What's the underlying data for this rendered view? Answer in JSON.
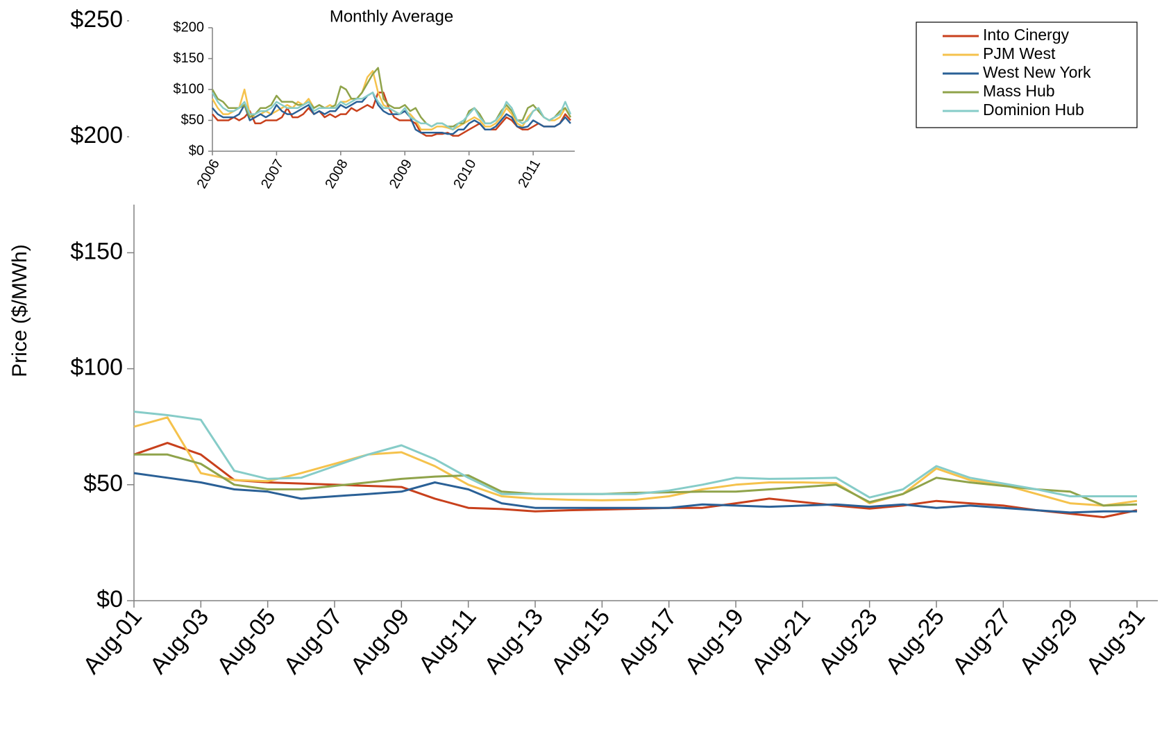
{
  "chart_data": [
    {
      "type": "line",
      "ylabel": "Price ($/MWh)",
      "legend": "upper right",
      "grid": false,
      "categories": [
        "Aug-01",
        null,
        "Aug-03",
        null,
        "Aug-05",
        null,
        "Aug-07",
        null,
        "Aug-09",
        null,
        "Aug-11",
        null,
        "Aug-13",
        null,
        "Aug-15",
        null,
        "Aug-17",
        null,
        "Aug-19",
        null,
        "Aug-21",
        null,
        "Aug-23",
        null,
        "Aug-25",
        null,
        "Aug-27",
        null,
        "Aug-29",
        null,
        "Aug-31"
      ],
      "ylim": [
        0,
        250
      ],
      "yticks": [
        {
          "value": 0,
          "label": "$0"
        },
        {
          "value": 50,
          "label": "$50"
        },
        {
          "value": 100,
          "label": "$100"
        },
        {
          "value": 150,
          "label": "$150"
        },
        {
          "value": 200,
          "label": "$200"
        },
        {
          "value": 250,
          "label": "$250"
        }
      ],
      "series": [
        {
          "name": "Into Cinergy",
          "color": "#c8401c",
          "values": [
            63,
            68,
            63,
            52,
            51,
            50.5,
            50,
            49.5,
            49,
            44,
            40,
            39.5,
            38.5,
            39,
            39.3,
            39.6,
            40,
            40,
            42,
            44,
            42.5,
            41,
            39.7,
            41,
            43,
            42,
            41,
            39,
            37.5,
            36,
            39
          ]
        },
        {
          "name": "PJM West",
          "color": "#f5c24c",
          "values": [
            75,
            79,
            55,
            52,
            51.5,
            55,
            59,
            63,
            64,
            58,
            50,
            45,
            44,
            43.5,
            43.3,
            43.5,
            45,
            48,
            50,
            51,
            51,
            50.7,
            42,
            46,
            57,
            52,
            50,
            46,
            42,
            41,
            43
          ]
        },
        {
          "name": "West New York",
          "color": "#2a6096",
          "values": [
            55,
            53,
            51,
            48,
            47,
            44,
            45,
            46,
            47,
            51,
            48,
            42,
            40,
            40,
            40,
            40,
            40,
            41.5,
            41,
            40.5,
            41,
            41.5,
            40.5,
            41.5,
            40,
            41,
            40,
            39,
            38,
            38.5,
            38.5
          ]
        },
        {
          "name": "Mass Hub",
          "color": "#8fa34a",
          "values": [
            63,
            63,
            59,
            50,
            48,
            48,
            49.5,
            51,
            52.5,
            53.5,
            54,
            47,
            46,
            46,
            46,
            46.5,
            46.7,
            47,
            47,
            48,
            49,
            50,
            42.5,
            46,
            53,
            51,
            49.5,
            48,
            47,
            41,
            41.5
          ]
        },
        {
          "name": "Dominion Hub",
          "color": "#86ccc8",
          "values": [
            81.5,
            80,
            78,
            56,
            52.5,
            53,
            58,
            63,
            67,
            61,
            53,
            46,
            46,
            46,
            46,
            46,
            47.5,
            50,
            53,
            52.5,
            52.7,
            53,
            44.5,
            48,
            58,
            53,
            50.5,
            48,
            45,
            45,
            45
          ]
        }
      ]
    },
    {
      "type": "line",
      "title": "Monthly Average",
      "categories": [
        "2006",
        null,
        null,
        null,
        null,
        null,
        null,
        null,
        null,
        null,
        null,
        null,
        "2007",
        null,
        null,
        null,
        null,
        null,
        null,
        null,
        null,
        null,
        null,
        null,
        "2008",
        null,
        null,
        null,
        null,
        null,
        null,
        null,
        null,
        null,
        null,
        null,
        "2009",
        null,
        null,
        null,
        null,
        null,
        null,
        null,
        null,
        null,
        null,
        null,
        "2010",
        null,
        null,
        null,
        null,
        null,
        null,
        null,
        null,
        null,
        null,
        null,
        "2011",
        null,
        null,
        null,
        null,
        null,
        null,
        null
      ],
      "ylim": [
        0,
        200
      ],
      "yticks": [
        {
          "value": 0,
          "label": "$0"
        },
        {
          "value": 50,
          "label": "$50"
        },
        {
          "value": 100,
          "label": "$100"
        },
        {
          "value": 150,
          "label": "$150"
        },
        {
          "value": 200,
          "label": "$200"
        }
      ],
      "series": [
        {
          "name": "Into Cinergy",
          "color": "#c8401c",
          "values": [
            60,
            50,
            50,
            50,
            55,
            50,
            55,
            65,
            45,
            45,
            50,
            50,
            50,
            55,
            70,
            55,
            55,
            60,
            70,
            60,
            65,
            55,
            60,
            55,
            60,
            60,
            70,
            65,
            70,
            75,
            70,
            95,
            95,
            70,
            55,
            50,
            50,
            50,
            45,
            30,
            25,
            25,
            28,
            28,
            30,
            25,
            25,
            30,
            35,
            40,
            45,
            35,
            35,
            35,
            45,
            55,
            50,
            40,
            35,
            35,
            40,
            45,
            40,
            40,
            40,
            45,
            60,
            50
          ]
        },
        {
          "name": "PJM West",
          "color": "#f5c24c",
          "values": [
            85,
            70,
            60,
            60,
            65,
            70,
            100,
            60,
            55,
            60,
            65,
            60,
            65,
            70,
            75,
            70,
            80,
            75,
            85,
            70,
            75,
            70,
            75,
            70,
            80,
            80,
            85,
            85,
            95,
            120,
            130,
            95,
            75,
            70,
            65,
            60,
            65,
            60,
            50,
            35,
            35,
            35,
            40,
            40,
            38,
            35,
            40,
            45,
            50,
            55,
            50,
            40,
            40,
            45,
            55,
            70,
            60,
            45,
            40,
            55,
            65,
            70,
            55,
            50,
            50,
            55,
            70,
            55
          ]
        },
        {
          "name": "West New York",
          "color": "#2a6096",
          "values": [
            70,
            60,
            55,
            55,
            55,
            60,
            75,
            50,
            55,
            60,
            55,
            60,
            75,
            65,
            60,
            60,
            65,
            70,
            75,
            60,
            65,
            60,
            65,
            65,
            75,
            70,
            75,
            80,
            80,
            90,
            95,
            75,
            65,
            60,
            60,
            60,
            65,
            55,
            35,
            30,
            30,
            30,
            30,
            30,
            28,
            28,
            35,
            35,
            45,
            50,
            45,
            35,
            35,
            40,
            50,
            60,
            55,
            40,
            38,
            40,
            50,
            45,
            40,
            40,
            40,
            45,
            55,
            45
          ]
        },
        {
          "name": "Mass Hub",
          "color": "#8fa34a",
          "values": [
            100,
            85,
            80,
            70,
            70,
            70,
            75,
            55,
            60,
            70,
            70,
            75,
            90,
            80,
            80,
            80,
            75,
            75,
            80,
            70,
            75,
            70,
            70,
            75,
            105,
            100,
            85,
            85,
            95,
            110,
            125,
            135,
            85,
            75,
            70,
            70,
            75,
            65,
            70,
            55,
            45,
            40,
            45,
            45,
            40,
            40,
            45,
            45,
            65,
            70,
            60,
            45,
            45,
            50,
            65,
            75,
            65,
            50,
            50,
            70,
            75,
            65,
            55,
            50,
            55,
            65,
            70,
            55
          ]
        },
        {
          "name": "Dominion Hub",
          "color": "#86ccc8",
          "values": [
            95,
            80,
            70,
            65,
            65,
            70,
            80,
            60,
            60,
            65,
            65,
            70,
            80,
            75,
            70,
            70,
            70,
            75,
            80,
            65,
            70,
            70,
            70,
            70,
            80,
            75,
            80,
            85,
            85,
            90,
            95,
            80,
            70,
            70,
            65,
            60,
            70,
            55,
            50,
            45,
            45,
            40,
            45,
            45,
            40,
            35,
            45,
            50,
            60,
            70,
            55,
            45,
            45,
            50,
            60,
            80,
            70,
            50,
            45,
            50,
            65,
            70,
            55,
            50,
            55,
            60,
            80,
            60
          ]
        }
      ]
    }
  ]
}
